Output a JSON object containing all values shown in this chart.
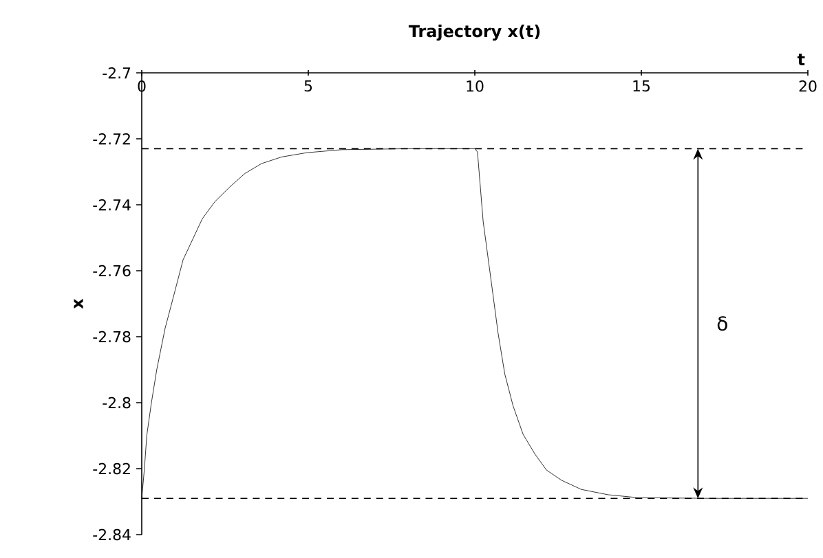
{
  "chart_data": {
    "type": "line",
    "title": "Trajectory x(t)",
    "xlabel": "t",
    "ylabel": "x",
    "x": [
      0,
      0.08,
      0.15,
      0.29,
      0.45,
      0.7,
      1.0,
      1.24,
      1.82,
      2.2,
      2.64,
      3.1,
      3.6,
      4.2,
      4.96,
      6,
      8,
      10,
      10.08,
      10.25,
      10.5,
      10.7,
      10.9,
      11.15,
      11.45,
      11.8,
      12.15,
      12.6,
      13.2,
      14,
      14.9,
      17,
      20
    ],
    "values": [
      -2.829,
      -2.82,
      -2.81,
      -2.8,
      -2.79,
      -2.7775,
      -2.766,
      -2.7567,
      -2.7442,
      -2.739,
      -2.7346,
      -2.7305,
      -2.7275,
      -2.7255,
      -2.7242,
      -2.7233,
      -2.723,
      -2.723,
      -2.724,
      -2.745,
      -2.7638,
      -2.779,
      -2.7913,
      -2.801,
      -2.8096,
      -2.8155,
      -2.8204,
      -2.8235,
      -2.8263,
      -2.8279,
      -2.8288,
      -2.829,
      -2.829
    ],
    "color": "#000000",
    "marker": "none",
    "line_style": "solid",
    "xlim": [
      0,
      20
    ],
    "xticks": [
      0,
      5,
      10,
      15,
      20
    ],
    "ylim": [
      -2.84,
      -2.7
    ],
    "yticks": [
      -2.84,
      -2.82,
      -2.8,
      -2.78,
      -2.76,
      -2.74,
      -2.72,
      -2.7
    ],
    "ref_lines": [
      {
        "axis": "y",
        "value": -2.723,
        "color": "#000000",
        "line_style": "dashed"
      },
      {
        "axis": "y",
        "value": -2.829,
        "color": "#000000",
        "line_style": "dashed"
      }
    ],
    "annotations": [
      "δ"
    ],
    "grid": false
  }
}
